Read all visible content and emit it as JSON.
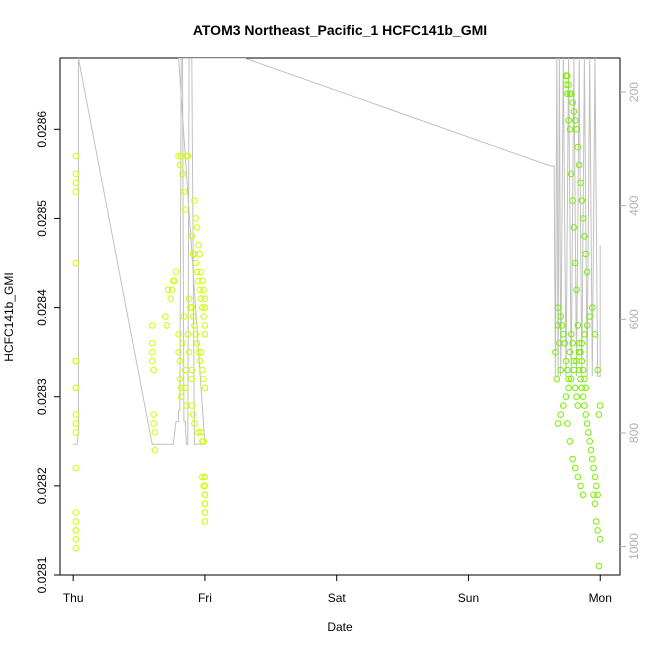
{
  "chart_data": {
    "type": "scatter",
    "title": "ATOM3 Northeast_Pacific_1 HCFC141b_GMI",
    "xlabel": "Date",
    "ylabel": "HCFC141b_GMI",
    "x_ticks": [
      "Thu",
      "Fri",
      "Sat",
      "Sun",
      "Mon"
    ],
    "x_tick_values": [
      0,
      1,
      2,
      3,
      4
    ],
    "xlim": [
      -0.1,
      4.15
    ],
    "y_ticks": [
      "0.0281",
      "0.0282",
      "0.0283",
      "0.0284",
      "0.0285",
      "0.0286"
    ],
    "y_tick_values": [
      0.0281,
      0.0282,
      0.0283,
      0.0284,
      0.0285,
      0.0286
    ],
    "ylim": [
      0.0281,
      0.02868
    ],
    "y2_ticks": [
      "200",
      "400",
      "600",
      "800",
      "1000"
    ],
    "y2_tick_values": [
      200,
      400,
      600,
      800,
      1000
    ],
    "y2lim": [
      1050,
      140
    ],
    "y2_reversed": true,
    "grid": false,
    "colors": {
      "points_early": "#ccff00",
      "points_late": "#77ee00",
      "line": "#c0c0c0",
      "axis": "#000000",
      "secondary_axis": "#b0b0b0"
    },
    "series": [
      {
        "kind": "points",
        "x": [
          0.02,
          0.02,
          0.02,
          0.02,
          0.02,
          0.02,
          0.02,
          0.02,
          0.02,
          0.02,
          0.02,
          0.02,
          0.02,
          0.02,
          0.02,
          0.02,
          0.02,
          0.02,
          0.02,
          0.6,
          0.6,
          0.6,
          0.6,
          0.61,
          0.61,
          0.61,
          0.62,
          0.62,
          0.7,
          0.71,
          0.72,
          0.74,
          0.75,
          0.76,
          0.77,
          0.78,
          0.8,
          0.81,
          0.82,
          0.83,
          0.84,
          0.85,
          0.86,
          0.87,
          0.8,
          0.8,
          0.81,
          0.81,
          0.82,
          0.82,
          0.83,
          0.84,
          0.85,
          0.85,
          0.86,
          0.87,
          0.88,
          0.9,
          0.9,
          0.88,
          0.89,
          0.9,
          0.91,
          0.92,
          0.93,
          0.94,
          0.95,
          0.96,
          0.97,
          0.98,
          0.99,
          1.0,
          0.9,
          0.91,
          0.92,
          0.93,
          0.94,
          0.95,
          0.96,
          0.97,
          0.98,
          0.99,
          1.0,
          1.0,
          0.92,
          0.93,
          0.94,
          0.95,
          0.96,
          0.97,
          0.98,
          0.99,
          1.0,
          1.0,
          0.9,
          0.91,
          0.92,
          0.95,
          0.97,
          0.98,
          0.99,
          1.0,
          1.0,
          1.0,
          1.0,
          1.0,
          0.98,
          0.99,
          1.0,
          1.0,
          1.0,
          1.0,
          1.0
        ],
        "y": [
          0.02857,
          0.02855,
          0.02854,
          0.02853,
          0.02845,
          0.02834,
          0.02834,
          0.02831,
          0.02831,
          0.02828,
          0.02827,
          0.02826,
          0.02822,
          0.02817,
          0.02816,
          0.02815,
          0.02815,
          0.02814,
          0.02813,
          0.02838,
          0.02836,
          0.02835,
          0.02834,
          0.02833,
          0.02828,
          0.02827,
          0.02826,
          0.02824,
          0.02839,
          0.02838,
          0.02842,
          0.02841,
          0.02842,
          0.02843,
          0.02843,
          0.02844,
          0.02857,
          0.02856,
          0.02857,
          0.02855,
          0.02853,
          0.02851,
          0.02857,
          0.02857,
          0.02837,
          0.02835,
          0.02834,
          0.02832,
          0.02831,
          0.0283,
          0.02836,
          0.02839,
          0.02833,
          0.02831,
          0.02829,
          0.02837,
          0.02835,
          0.02833,
          0.02832,
          0.02841,
          0.0284,
          0.0284,
          0.02839,
          0.02838,
          0.02837,
          0.02836,
          0.02835,
          0.02834,
          0.02835,
          0.02833,
          0.02832,
          0.02831,
          0.02848,
          0.02846,
          0.02846,
          0.02845,
          0.02844,
          0.02843,
          0.02842,
          0.02841,
          0.0284,
          0.02839,
          0.02838,
          0.02837,
          0.02852,
          0.0285,
          0.02849,
          0.02847,
          0.02846,
          0.02844,
          0.02843,
          0.02842,
          0.02841,
          0.0284,
          0.02829,
          0.02828,
          0.02827,
          0.02826,
          0.02826,
          0.02825,
          0.02825,
          0.0282,
          0.02819,
          0.02818,
          0.02817,
          0.02816,
          0.02821,
          0.0282,
          0.02821,
          0.02819,
          0.02818,
          0.02818,
          0.02817
        ]
      },
      {
        "kind": "points",
        "x": [
          3.66,
          3.67,
          3.68,
          3.68,
          3.69,
          3.7,
          3.7,
          3.71,
          3.72,
          3.73,
          3.74,
          3.75,
          3.76,
          3.77,
          3.78,
          3.79,
          3.8,
          3.81,
          3.82,
          3.83,
          3.84,
          3.85,
          3.86,
          3.87,
          3.88,
          3.89,
          3.9,
          3.91,
          3.92,
          3.93,
          3.94,
          3.95,
          3.96,
          3.97,
          3.98,
          3.99,
          4.0,
          3.68,
          3.7,
          3.72,
          3.74,
          3.76,
          3.78,
          3.8,
          3.82,
          3.84,
          3.86,
          3.88,
          3.9,
          3.92,
          3.94,
          3.96,
          3.98,
          3.74,
          3.74,
          3.75,
          3.76,
          3.77,
          3.78,
          3.79,
          3.8,
          3.81,
          3.82,
          3.83,
          3.84,
          3.85,
          3.86,
          3.87,
          3.88,
          3.89,
          3.74,
          3.75,
          3.76,
          3.77,
          3.78,
          3.79,
          3.8,
          3.81,
          3.82,
          3.83,
          3.84,
          3.85,
          3.86,
          3.87,
          3.88,
          3.89,
          3.9,
          3.95,
          3.96,
          3.97,
          3.98,
          3.99,
          4.0,
          3.75,
          3.77,
          3.79,
          3.81,
          3.83,
          3.85,
          3.87
        ],
        "y": [
          0.02835,
          0.02832,
          0.02838,
          0.0284,
          0.02836,
          0.02833,
          0.02839,
          0.02838,
          0.02837,
          0.02836,
          0.02834,
          0.02833,
          0.02832,
          0.02835,
          0.02837,
          0.02836,
          0.02834,
          0.02831,
          0.0283,
          0.02829,
          0.02833,
          0.02832,
          0.02831,
          0.0283,
          0.02829,
          0.02828,
          0.02827,
          0.02826,
          0.02825,
          0.02824,
          0.02823,
          0.02822,
          0.02821,
          0.0282,
          0.02819,
          0.02828,
          0.02829,
          0.02827,
          0.02828,
          0.02829,
          0.0283,
          0.02831,
          0.02832,
          0.02833,
          0.02834,
          0.02835,
          0.02836,
          0.02837,
          0.02838,
          0.02839,
          0.0284,
          0.02837,
          0.02833,
          0.02866,
          0.02865,
          0.02864,
          0.02861,
          0.0286,
          0.02855,
          0.02852,
          0.02849,
          0.02845,
          0.02842,
          0.02838,
          0.02836,
          0.02835,
          0.02834,
          0.02833,
          0.02832,
          0.02831,
          0.02866,
          0.02866,
          0.02865,
          0.02864,
          0.02864,
          0.02863,
          0.02862,
          0.02861,
          0.0286,
          0.02858,
          0.02856,
          0.02854,
          0.02852,
          0.0285,
          0.02848,
          0.02846,
          0.02844,
          0.02819,
          0.02818,
          0.02816,
          0.02815,
          0.02811,
          0.02814,
          0.02827,
          0.02825,
          0.02823,
          0.02822,
          0.02821,
          0.0282,
          0.02819
        ]
      },
      {
        "kind": "line",
        "axis": "y2",
        "x": [
          0.0,
          0.02,
          0.03,
          0.04,
          0.04,
          0.6,
          0.6,
          0.61,
          0.61,
          0.7,
          0.72,
          0.74,
          0.76,
          0.78,
          0.8,
          0.8,
          0.81,
          0.82,
          0.83,
          0.84,
          0.85,
          0.86,
          0.87,
          0.88,
          0.9,
          0.92,
          0.94,
          0.96,
          0.98,
          1.0,
          1.0,
          0.8,
          1.3,
          3.62,
          3.65,
          3.66,
          3.67,
          3.68,
          3.69,
          3.7,
          3.72,
          3.74,
          3.76,
          3.78,
          3.8,
          3.82,
          3.84,
          3.86,
          3.88,
          3.9,
          3.92,
          3.94,
          3.96,
          3.98,
          4.0,
          4.0
        ],
        "y": [
          820,
          820,
          820,
          800,
          140,
          820,
          820,
          820,
          820,
          820,
          820,
          820,
          820,
          780,
          780,
          760,
          760,
          140,
          140,
          780,
          780,
          820,
          820,
          140,
          140,
          820,
          820,
          820,
          820,
          820,
          820,
          140,
          140,
          330,
          330,
          700,
          140,
          700,
          140,
          700,
          140,
          700,
          140,
          700,
          140,
          700,
          140,
          700,
          140,
          700,
          140,
          700,
          140,
          700,
          700,
          470
        ]
      }
    ]
  }
}
